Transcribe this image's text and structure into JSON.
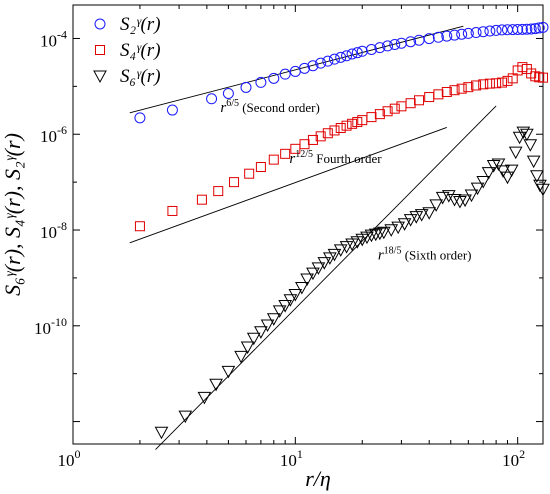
{
  "chart_data": {
    "type": "scatter",
    "xscale": "log",
    "yscale": "log",
    "xlim": [
      1,
      130
    ],
    "ylim": [
      3.4e-13,
      0.0005
    ],
    "xlabel": "r/η",
    "ylabel": "S₆ᵞ(r), S₄ᵞ(r), S₂ᵞ(r)",
    "xticks": [
      {
        "value": 1,
        "base": "10",
        "exp": "0"
      },
      {
        "value": 10,
        "base": "10",
        "exp": "1"
      },
      {
        "value": 100,
        "base": "10",
        "exp": "2"
      }
    ],
    "yticks": [
      {
        "value": 0.0001,
        "base": "10",
        "exp": "-4"
      },
      {
        "value": 1e-06,
        "base": "10",
        "exp": "-6"
      },
      {
        "value": 1e-08,
        "base": "10",
        "exp": "-8"
      },
      {
        "value": 1e-10,
        "base": "10",
        "exp": "-10"
      }
    ],
    "legend": [
      {
        "series": "S2",
        "text": "S₂ᵞ(r)",
        "marker": "circle",
        "color": "#1a1aff"
      },
      {
        "series": "S4",
        "text": "S₄ᵞ(r)",
        "marker": "square",
        "color": "#e00000"
      },
      {
        "series": "S6",
        "text": "S₆ᵞ(r)",
        "marker": "triangle-down",
        "color": "#000000"
      }
    ],
    "series": [
      {
        "name": "S2",
        "marker": "circle",
        "color": "#1a1aff",
        "x": [
          2,
          2.8,
          4.2,
          5,
          6,
          7,
          8,
          9,
          10,
          11,
          12,
          13,
          14,
          15,
          16,
          17,
          18,
          19,
          20,
          22,
          24,
          26,
          28,
          30,
          33,
          36,
          40,
          44,
          48,
          52,
          56,
          60,
          65,
          70,
          75,
          80,
          85,
          90,
          95,
          100,
          105,
          110,
          115,
          120,
          125,
          130
        ],
        "y": [
          2.2e-06,
          3.2e-06,
          5.5e-06,
          7.1e-06,
          9.5e-06,
          1.21e-05,
          1.47e-05,
          1.8e-05,
          2.05e-05,
          2.38e-05,
          2.7e-05,
          3.05e-05,
          3.36e-05,
          3.7e-05,
          4.03e-05,
          4.35e-05,
          4.75e-05,
          5.05e-05,
          5.4e-05,
          5.9e-05,
          6.45e-05,
          7e-05,
          7.5e-05,
          7.95e-05,
          8.55e-05,
          9.2e-05,
          9.95e-05,
          0.000106,
          0.000112,
          0.0001175,
          0.0001225,
          0.0001275,
          0.000133,
          0.0001385,
          0.000143,
          0.0001475,
          0.000151,
          0.0001525,
          0.000153,
          0.000154,
          0.000155,
          0.000156,
          0.000158,
          0.000161,
          0.000166,
          0.000171
        ]
      },
      {
        "name": "S4",
        "marker": "square",
        "color": "#e00000",
        "x": [
          2,
          2.8,
          3.8,
          4.5,
          5.3,
          6.2,
          7,
          8,
          9,
          10,
          11,
          12,
          13,
          14,
          15,
          16,
          17,
          18,
          19,
          20,
          22,
          24,
          26,
          28,
          30,
          33,
          36,
          40,
          44,
          48,
          52,
          56,
          60,
          65,
          70,
          75,
          80,
          85,
          90,
          95,
          100,
          105,
          110,
          115,
          120,
          125,
          130
        ],
        "y": [
          1.2e-08,
          2.5e-08,
          4.3e-08,
          6.5e-08,
          1e-07,
          1.5e-07,
          2.07e-07,
          2.95e-07,
          3.9e-07,
          4.96e-07,
          6.2e-07,
          7.6e-07,
          9.05e-07,
          1.05e-06,
          1.2e-06,
          1.35e-06,
          1.509e-06,
          1.651e-06,
          1.799e-06,
          1.97e-06,
          2.28e-06,
          2.63e-06,
          3.02e-06,
          3.42e-06,
          3.83e-06,
          4.45e-06,
          5.12e-06,
          5.98e-06,
          6.81e-06,
          7.62e-06,
          8.31e-06,
          8.94e-06,
          9.62e-06,
          1.044e-05,
          1.102e-05,
          1.14e-05,
          1.16e-05,
          1.2e-05,
          1.3e-05,
          1.47e-05,
          2.15e-05,
          2.52e-05,
          2.3e-05,
          1.86e-05,
          1.62e-05,
          1.55e-05,
          1.52e-05
        ]
      },
      {
        "name": "S6",
        "marker": "triangle-down",
        "color": "#000000",
        "x": [
          2.5,
          3.2,
          3.9,
          4.4,
          5,
          5.7,
          6.1,
          6.5,
          7,
          7.5,
          8,
          8.5,
          9,
          9.5,
          10,
          10.7,
          11.3,
          12,
          12.7,
          13.5,
          14.3,
          15,
          16,
          17,
          18,
          19,
          20,
          21,
          22,
          23,
          24,
          25,
          27,
          29,
          31,
          33,
          35,
          37,
          40,
          43,
          46,
          49,
          52,
          55,
          58,
          62,
          66,
          70,
          74,
          78,
          82,
          86,
          90,
          94,
          98,
          102,
          106,
          110,
          114,
          118,
          122,
          126,
          130
        ],
        "y": [
          6e-13,
          1.3e-12,
          3.2e-12,
          6e-12,
          1.12e-11,
          2.3e-11,
          3.6e-11,
          5.5e-11,
          7.5e-11,
          1.04e-10,
          1.4e-10,
          2.05e-10,
          2.65e-10,
          3.5e-10,
          4.5e-10,
          6.3e-10,
          9.5e-10,
          1.26e-09,
          1.62e-09,
          2.08e-09,
          2.62e-09,
          3.1e-09,
          3.85e-09,
          4.5e-09,
          5.1e-09,
          5.7e-09,
          6.4e-09,
          7.1e-09,
          7.8e-09,
          8.2e-09,
          8.6e-09,
          9e-09,
          1.01e-08,
          1.15e-08,
          1.35e-08,
          1.65e-08,
          1.9e-08,
          2.1e-08,
          2.3e-08,
          3.35e-08,
          4.8e-08,
          5.24e-08,
          4.35e-08,
          3.95e-08,
          4.23e-08,
          5.37e-08,
          7.5e-08,
          1.03e-07,
          1.58e-07,
          2.22e-07,
          2.39e-07,
          1.72e-07,
          1.27e-07,
          1.78e-07,
          4.23e-07,
          8.67e-07,
          1.11e-06,
          1e-06,
          6.03e-07,
          2.75e-07,
          1.36e-07,
          8.6e-08,
          7.1e-08
        ]
      }
    ],
    "fit_lines": [
      {
        "series": "S2",
        "exponent": "6/5",
        "label_base": "r",
        "label_sup": "6/5",
        "label_text": " (Second order)",
        "x": [
          1.8,
          57
        ],
        "y": [
          2.8e-06,
          0.00018
        ],
        "label_at": [
          4.6,
          2.9e-06
        ]
      },
      {
        "series": "S4",
        "exponent": "12/5",
        "label_base": "r",
        "label_sup": "12/5",
        "label_text": " Fourth order",
        "x": [
          1.8,
          48
        ],
        "y": [
          5.4e-09,
          1.39e-06
        ],
        "label_at": [
          9.4,
          2.5e-07
        ]
      },
      {
        "series": "S6",
        "exponent": "18/5",
        "label_base": "r",
        "label_sup": "18/5",
        "label_text": "  (Sixth order)",
        "x": [
          2.35,
          80
        ],
        "y": [
          2.6e-13,
          3.9e-06
        ],
        "label_at": [
          23.5,
          2.4e-09
        ]
      }
    ]
  }
}
